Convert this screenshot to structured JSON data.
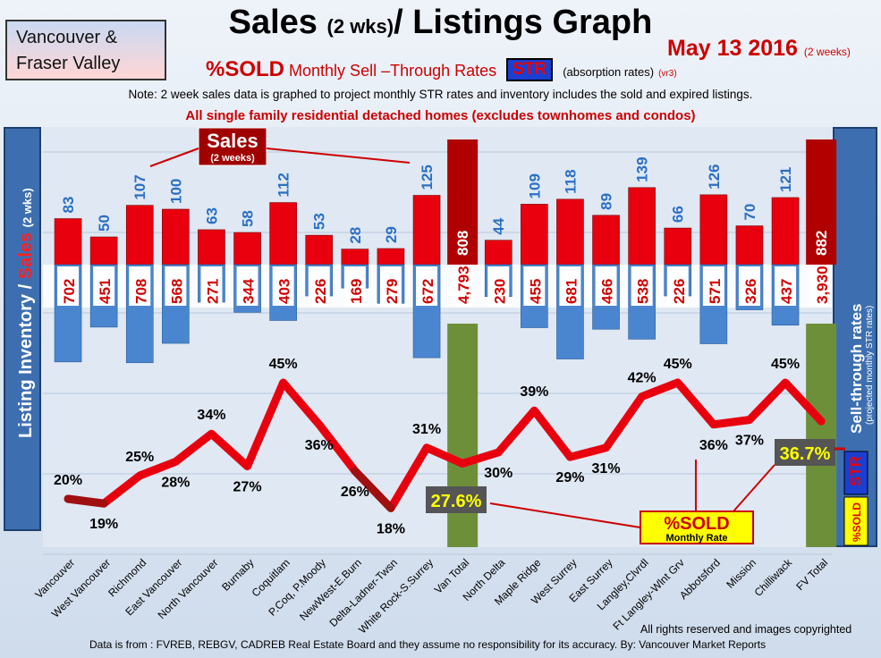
{
  "header": {
    "region_line1": "Vancouver &",
    "region_line2": "Fraser Valley",
    "title_main_a": "Sales",
    "title_small": "(2 wks)",
    "title_main_b": "/ Listings Graph",
    "date": "May 13 2016",
    "date_note": "(2 weeks)",
    "subtitle_sold": "%SOLD",
    "subtitle_rates": "Monthly Sell –Through Rates",
    "str_badge": "STR",
    "subtitle_abs": "(absorption rates)",
    "subtitle_ver": "(vr3)",
    "note": "Note: 2 week sales data is graphed to project monthly STR rates and inventory includes the sold and expired listings.",
    "scope": "All single family residential detached homes (excludes townhomes and condos)"
  },
  "footer": {
    "rights": "All rights reserved and  images copyrighted",
    "source": "Data is from : FVREB, REBGV, CADREB Real Estate Board and they assume no responsibility for its accuracy. By: Vancouver Market Reports"
  },
  "colors": {
    "sales": "#e8000f",
    "listings": "#4a86d0",
    "total_sales": "#b00000",
    "total_listings": "#6e8f3a",
    "str_line": "#e8000f"
  },
  "chart_data": {
    "type": "bar",
    "title": "Sales (2 wks)/ Listings Graph",
    "categories": [
      "Vancouver",
      "West Vancouver",
      "Richmond",
      "East Vancouver",
      "North Vancouver",
      "Burnaby",
      "Coquitlam",
      "P.Coq, P.Moody",
      "NewWest-E.Burn",
      "Delta-Ladner-Twsn",
      "White Rock-S.Surrey",
      "Van Total",
      "North Delta",
      "Maple Ridge",
      "West Surrey",
      "East Surrey",
      "Langley,Clvrdl",
      "Ft Langley-Wlnt Grv",
      "Abbotsford",
      "Mission",
      "Chilliwack",
      "FV Total"
    ],
    "series": [
      {
        "name": "Sales",
        "values": [
          83,
          50,
          107,
          100,
          63,
          58,
          112,
          53,
          28,
          29,
          125,
          808,
          44,
          109,
          118,
          89,
          139,
          66,
          126,
          70,
          121,
          882
        ],
        "labels": [
          "83",
          "50",
          "107",
          "100",
          "63",
          "58",
          "112",
          "53",
          "28",
          "29",
          "125",
          "808",
          "44",
          "109",
          "118",
          "89",
          "139",
          "66",
          "126",
          "70",
          "121",
          "882"
        ]
      },
      {
        "name": "Listing Inventory",
        "values": [
          702,
          451,
          708,
          568,
          271,
          344,
          403,
          226,
          169,
          279,
          672,
          4793,
          230,
          455,
          681,
          466,
          538,
          226,
          571,
          326,
          437,
          3930
        ],
        "labels": [
          "702",
          "451",
          "708",
          "568",
          "271",
          "344",
          "403",
          "226",
          "169",
          "279",
          "672",
          "4,793",
          "230",
          "455",
          "681",
          "466",
          "538",
          "226",
          "571",
          "326",
          "437",
          "3,930"
        ]
      },
      {
        "name": "%SOLD",
        "values": [
          20,
          19,
          25,
          28,
          34,
          27,
          45,
          36,
          26,
          18,
          31,
          27.6,
          30,
          39,
          29,
          31,
          42,
          45,
          36,
          37,
          45,
          36.7
        ],
        "labels": [
          "20%",
          "19%",
          "25%",
          "28%",
          "34%",
          "27%",
          "45%",
          "36%",
          "26%",
          "18%",
          "31%",
          "27.6%",
          "30%",
          "39%",
          "29%",
          "31%",
          "42%",
          "45%",
          "36%",
          "37%",
          "45%",
          "36.7%"
        ]
      }
    ],
    "ylabel_left_a": "Listing Inventory",
    "ylabel_left_sep": "/",
    "ylabel_left_b": "Sales",
    "ylabel_left_c": "(2  wks)",
    "ylabel_right_a": "Sell-through rates",
    "ylabel_right_b": "(projected monthly STR rates)",
    "right_str": "STR",
    "right_sold": "%SOLD",
    "annotation_sales": "Sales",
    "annotation_sales_sub": "(2 weeks)",
    "annotation_sold": "%SOLD",
    "annotation_sold_sub": "Monthly Rate"
  }
}
